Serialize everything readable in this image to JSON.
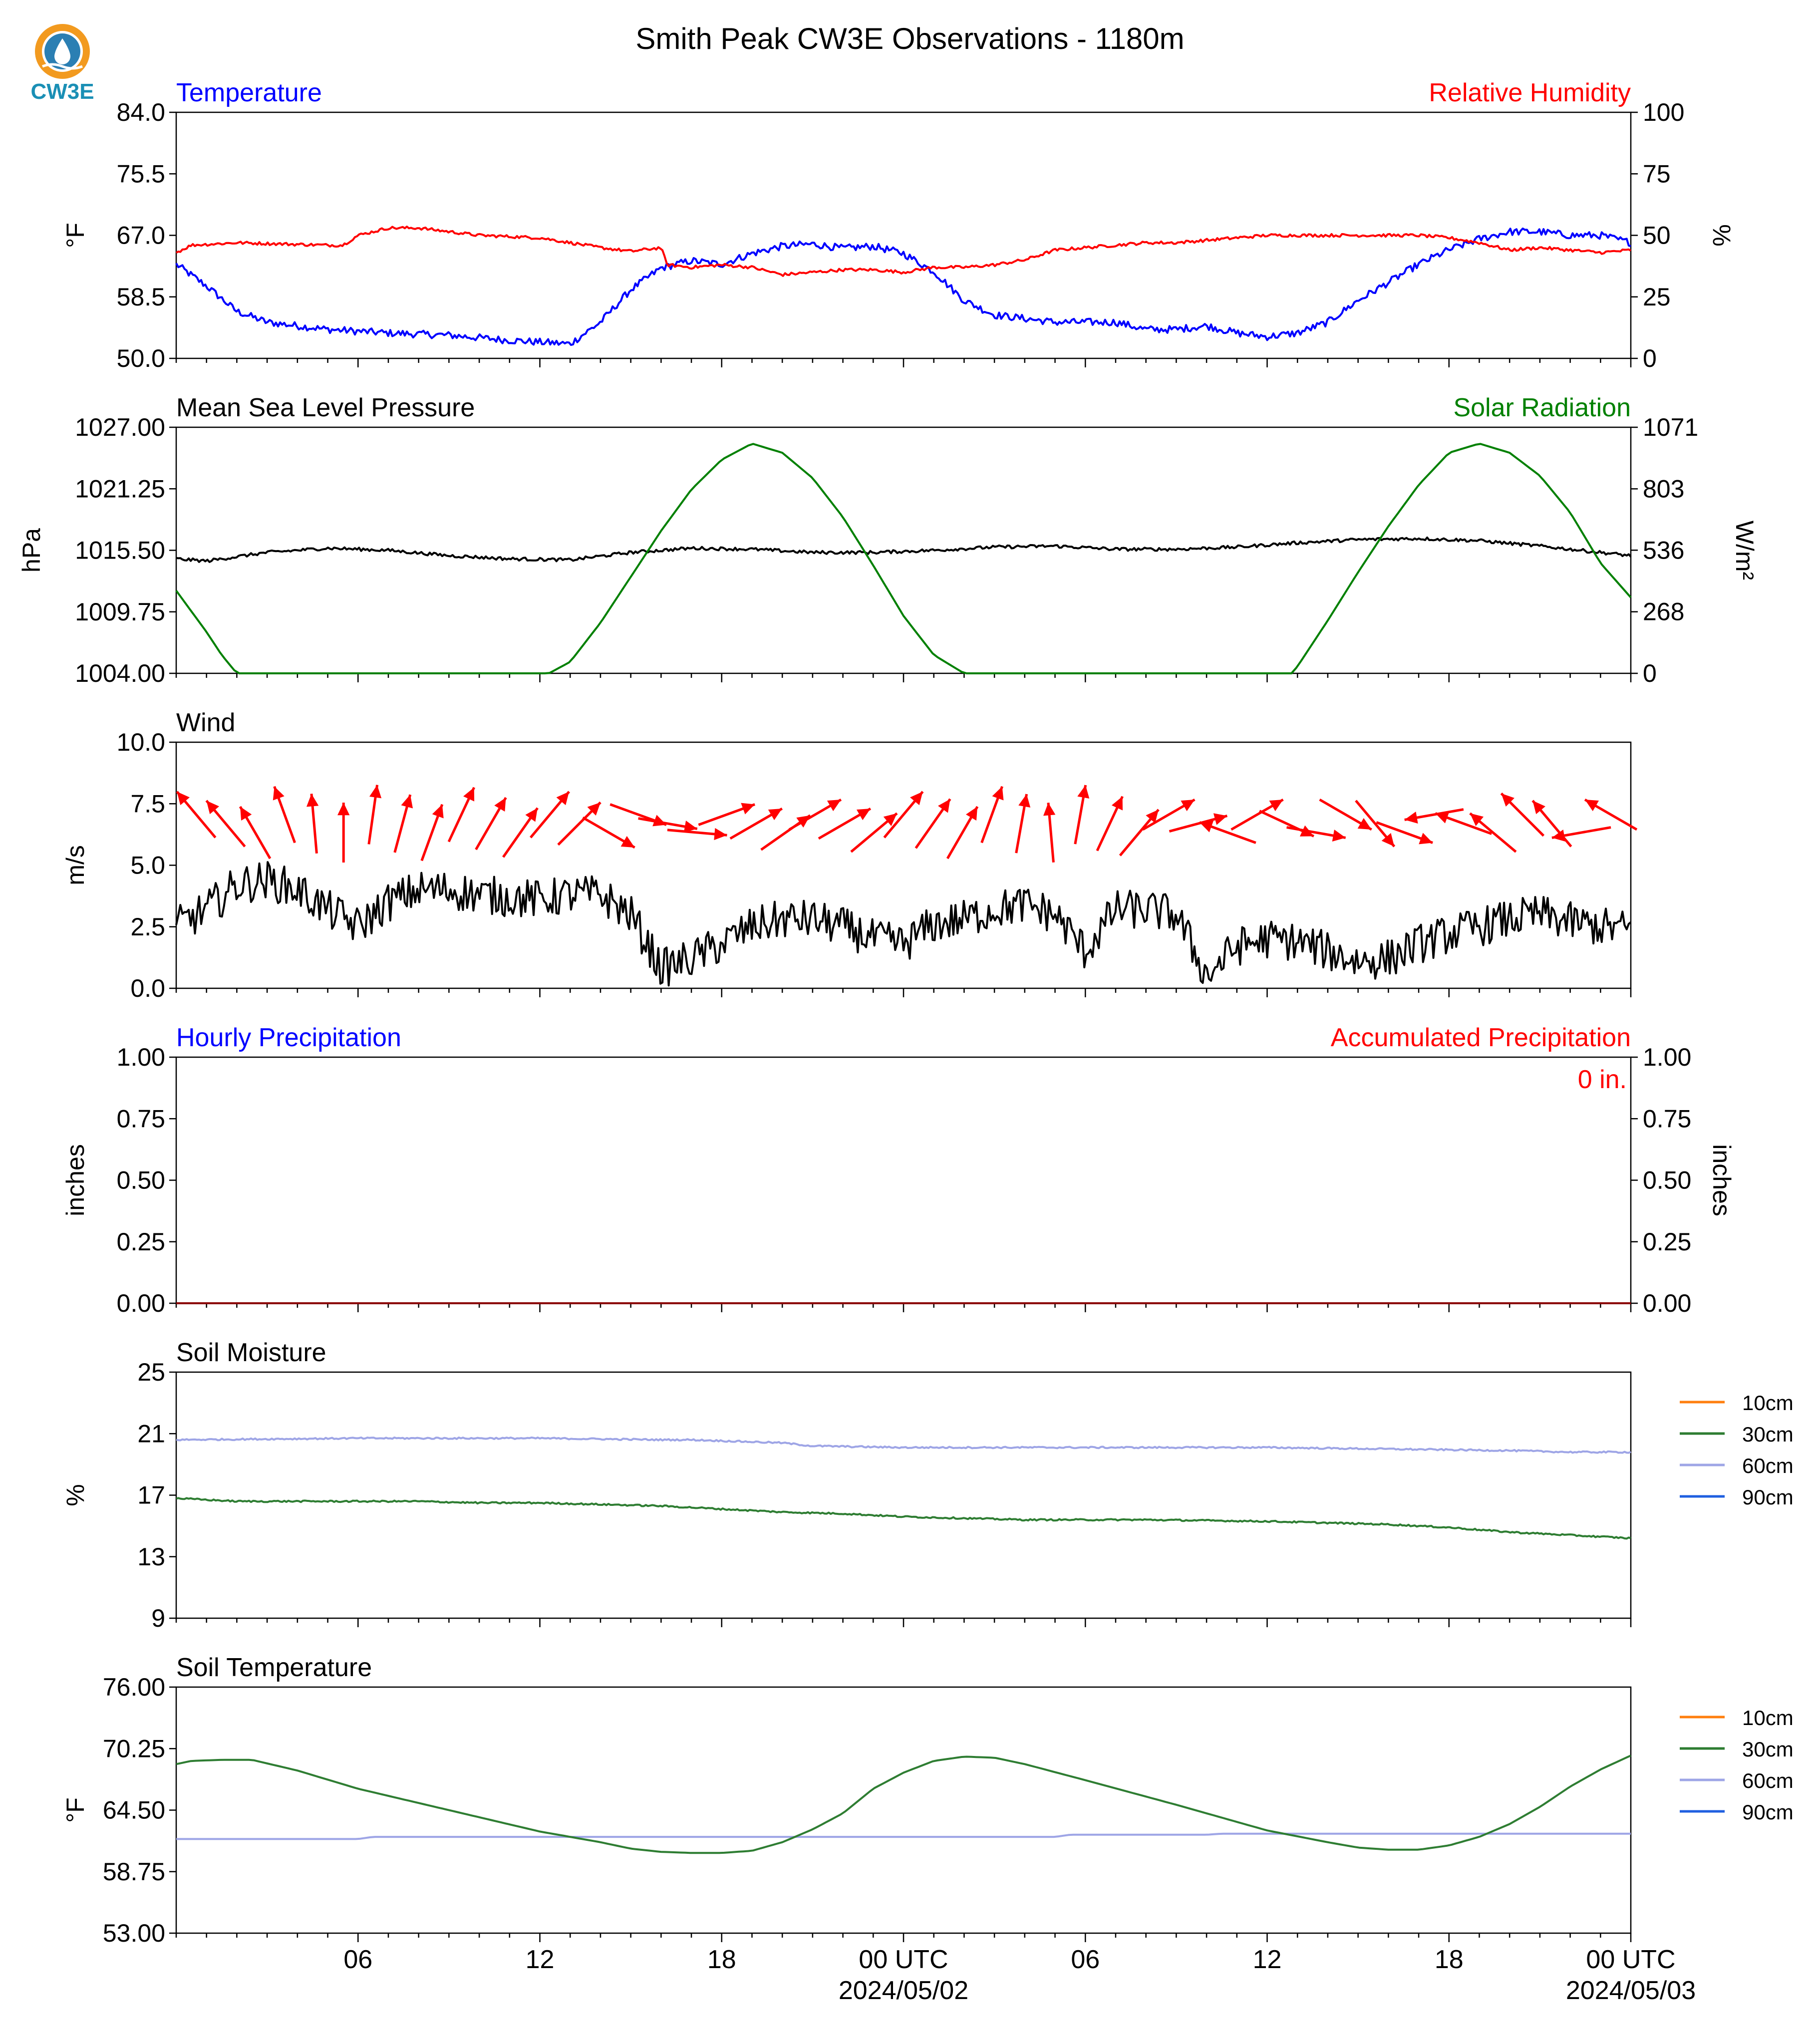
{
  "title": "Smith Peak CW3E Observations - 1180m",
  "logo": {
    "text": "CW3E",
    "colors": {
      "ring": "#f29a1f",
      "drop": "#2b7fb3",
      "text": "#1a8fb5"
    }
  },
  "x_axis": {
    "range_hours": [
      0,
      48
    ],
    "ticks": [
      {
        "hour": 6,
        "label": "06",
        "sub": ""
      },
      {
        "hour": 12,
        "label": "12",
        "sub": ""
      },
      {
        "hour": 18,
        "label": "18",
        "sub": ""
      },
      {
        "hour": 24,
        "label": "00 UTC",
        "sub": "2024/05/02"
      },
      {
        "hour": 30,
        "label": "06",
        "sub": ""
      },
      {
        "hour": 36,
        "label": "12",
        "sub": ""
      },
      {
        "hour": 42,
        "label": "18",
        "sub": ""
      },
      {
        "hour": 48,
        "label": "00 UTC",
        "sub": "2024/05/03"
      }
    ]
  },
  "chart_data": [
    {
      "id": "temp",
      "type": "line",
      "left_title": "Temperature",
      "left_title_color": "#0000ff",
      "right_title": "Relative Humidity",
      "right_title_color": "#ff0000",
      "ylabel": "°F",
      "ylabel2": "%",
      "ylim": [
        50.0,
        84.0
      ],
      "yticks": [
        "50.0",
        "58.5",
        "67.0",
        "75.5",
        "84.0"
      ],
      "ylim2": [
        0,
        100
      ],
      "yticks2": [
        "0",
        "25",
        "50",
        "75",
        "100"
      ],
      "series": [
        {
          "axis": "left",
          "color": "#0000ff",
          "noise": 0.5,
          "x": [
            0,
            1,
            2,
            3,
            5,
            7,
            9,
            11,
            13,
            14,
            15,
            16,
            17,
            18,
            19,
            20,
            21,
            22,
            23,
            24,
            25,
            26,
            27,
            28,
            29,
            30,
            31,
            32,
            33,
            34,
            35,
            36,
            37,
            38,
            39,
            40,
            41,
            42,
            43,
            44,
            45,
            46,
            47,
            48
          ],
          "y": [
            63,
            60,
            56.5,
            55,
            54,
            53.5,
            53.2,
            52.5,
            52,
            55,
            59.5,
            62.5,
            63.5,
            63,
            64.5,
            65.5,
            65.8,
            65.2,
            65.5,
            64.5,
            62,
            58,
            56,
            55.5,
            55,
            55,
            55,
            54,
            54,
            54.5,
            53.5,
            53,
            53.5,
            55,
            58,
            60.5,
            63,
            65,
            66.5,
            67.5,
            67.5,
            67,
            67,
            66
          ]
        },
        {
          "axis": "right",
          "color": "#ff0000",
          "noise": 0.6,
          "x": [
            0,
            0.5,
            2,
            5,
            5.5,
            6,
            7,
            8,
            10,
            12,
            14,
            15,
            16,
            16.2,
            17,
            18,
            19,
            20,
            21,
            22,
            23,
            24,
            25,
            26,
            27,
            28,
            29,
            30,
            31,
            32,
            33,
            34,
            35,
            36,
            37,
            38,
            39,
            40,
            41,
            42,
            43,
            44,
            45,
            46,
            47,
            48
          ],
          "y": [
            43,
            46,
            47,
            46,
            46,
            50,
            53,
            53,
            50,
            49,
            45,
            43.5,
            45,
            38,
            37,
            38,
            37,
            34,
            35,
            36,
            36,
            35,
            37,
            37,
            38,
            40,
            44,
            45,
            46,
            47,
            47,
            48,
            49,
            50,
            50,
            50,
            50,
            50,
            50,
            49,
            47,
            44,
            45,
            44,
            43,
            44
          ]
        }
      ]
    },
    {
      "id": "pressure",
      "type": "line",
      "left_title": "Mean Sea Level Pressure",
      "left_title_color": "#000000",
      "right_title": "Solar Radiation",
      "right_title_color": "#008000",
      "ylabel": "hPa",
      "ylabel2": "W/m²",
      "ylim": [
        1004.0,
        1027.0
      ],
      "yticks": [
        "1004.00",
        "1009.75",
        "1015.50",
        "1021.25",
        "1027.00"
      ],
      "ylim2": [
        0,
        1071
      ],
      "yticks2": [
        "0",
        "268",
        "536",
        "803",
        "1071"
      ],
      "series": [
        {
          "axis": "left",
          "color": "#000000",
          "noise": 0.15,
          "x": [
            0,
            1,
            3,
            5,
            7,
            9,
            11,
            13,
            15,
            17,
            19,
            21,
            23,
            25,
            27,
            29,
            31,
            33,
            35,
            37,
            39,
            41,
            43,
            45,
            48
          ],
          "y": [
            1014.7,
            1014.5,
            1015.3,
            1015.7,
            1015.5,
            1015.0,
            1014.7,
            1014.6,
            1015.3,
            1015.7,
            1015.6,
            1015.3,
            1015.3,
            1015.5,
            1015.8,
            1015.9,
            1015.6,
            1015.6,
            1015.8,
            1016.2,
            1016.5,
            1016.6,
            1016.4,
            1015.9,
            1015.0
          ]
        },
        {
          "axis": "right",
          "color": "#008000",
          "noise": 0,
          "x": [
            0,
            0.5,
            1,
            1.5,
            2,
            5,
            8,
            11,
            12,
            12.3,
            13,
            14,
            15,
            16,
            17,
            18,
            19,
            20,
            21,
            22,
            23,
            24,
            25,
            26,
            27,
            28,
            30,
            34,
            36,
            36.8,
            37,
            38,
            39,
            40,
            41,
            42,
            43,
            44,
            45,
            46,
            47,
            48
          ],
          "y": [
            360,
            270,
            180,
            80,
            0,
            0,
            0,
            0,
            0,
            0,
            50,
            220,
            420,
            620,
            800,
            930,
            1000,
            960,
            850,
            680,
            470,
            250,
            80,
            0,
            0,
            0,
            0,
            0,
            0,
            0,
            30,
            230,
            440,
            640,
            820,
            960,
            1000,
            960,
            860,
            700,
            480,
            330
          ]
        }
      ]
    },
    {
      "id": "wind",
      "type": "line",
      "left_title": "Wind",
      "left_title_color": "#000000",
      "ylabel": "m/s",
      "ylim": [
        0.0,
        10.0
      ],
      "yticks": [
        "0.0",
        "2.5",
        "5.0",
        "7.5",
        "10.0"
      ],
      "series": [
        {
          "axis": "left",
          "color": "#000000",
          "noise": 0.8,
          "x": [
            0,
            1,
            2,
            3,
            4,
            5,
            6,
            7,
            8,
            9,
            10,
            11,
            12,
            13,
            14,
            15,
            16,
            17,
            18,
            19,
            20,
            21,
            22,
            23,
            24,
            25,
            26,
            27,
            28,
            29,
            30,
            31,
            32,
            33,
            34,
            35,
            36,
            37,
            38,
            39,
            40,
            41,
            42,
            43,
            44,
            45,
            46,
            47,
            48
          ],
          "y": [
            2.5,
            3.2,
            4.2,
            4.4,
            4.0,
            3.2,
            2.5,
            3.5,
            4.0,
            4.0,
            3.8,
            3.7,
            3.6,
            3.8,
            3.8,
            3.0,
            0.8,
            1.2,
            1.8,
            2.5,
            2.8,
            2.8,
            2.5,
            2.0,
            1.8,
            2.6,
            2.8,
            3.2,
            3.4,
            3.0,
            1.5,
            3.2,
            3.2,
            3.0,
            0.5,
            1.7,
            2.0,
            1.9,
            1.5,
            1.1,
            1.2,
            1.8,
            2.2,
            2.5,
            2.8,
            3.0,
            2.7,
            2.5,
            2.4
          ]
        }
      ],
      "wind_barbs": {
        "color": "#ff0000",
        "hours": [
          0,
          1,
          2,
          3,
          4,
          5,
          6,
          7,
          8,
          9,
          10,
          11,
          12,
          13,
          14,
          15,
          16,
          17,
          18,
          19,
          20,
          21,
          22,
          23,
          24,
          25,
          26,
          27,
          28,
          29,
          30,
          31,
          32,
          33,
          34,
          35,
          36,
          37,
          38,
          39,
          40,
          41,
          42,
          43,
          44,
          45,
          46,
          47,
          48
        ],
        "directions_deg": [
          320,
          320,
          330,
          340,
          355,
          0,
          8,
          15,
          20,
          25,
          30,
          35,
          40,
          45,
          120,
          110,
          100,
          95,
          70,
          60,
          55,
          60,
          60,
          50,
          40,
          35,
          30,
          20,
          10,
          355,
          10,
          25,
          40,
          60,
          75,
          290,
          60,
          115,
          100,
          120,
          140,
          110,
          260,
          290,
          310,
          315,
          320,
          260,
          300
        ]
      }
    },
    {
      "id": "precip",
      "type": "line",
      "left_title": "Hourly Precipitation",
      "left_title_color": "#0000ff",
      "right_title": "Accumulated Precipitation",
      "right_title_color": "#ff0000",
      "annotation": "0 in.",
      "annotation_color": "#ff0000",
      "ylabel": "inches",
      "ylabel2": "inches",
      "ylim": [
        0.0,
        1.0
      ],
      "yticks": [
        "0.00",
        "0.25",
        "0.50",
        "0.75",
        "1.00"
      ],
      "ylim2": [
        0.0,
        1.0
      ],
      "yticks2": [
        "0.00",
        "0.25",
        "0.50",
        "0.75",
        "1.00"
      ],
      "series": [
        {
          "axis": "right",
          "color": "#8b0000",
          "noise": 0,
          "x": [
            0,
            48
          ],
          "y": [
            0,
            0
          ]
        }
      ]
    },
    {
      "id": "soil_moisture",
      "type": "line",
      "left_title": "Soil Moisture",
      "left_title_color": "#000000",
      "ylabel": "%",
      "ylim": [
        9,
        25
      ],
      "yticks": [
        "9",
        "13",
        "17",
        "21",
        "25"
      ],
      "legend": [
        {
          "label": "10cm",
          "color": "#ff7f0e"
        },
        {
          "label": "30cm",
          "color": "#2e7d32"
        },
        {
          "label": "60cm",
          "color": "#9ea5e6"
        },
        {
          "label": "90cm",
          "color": "#1f5fe0"
        }
      ],
      "series": [
        {
          "axis": "left",
          "color": "#9ea5e6",
          "noise": 0.05,
          "x": [
            0,
            6,
            12,
            16,
            17,
            20,
            21,
            24,
            28,
            32,
            36,
            40,
            44,
            46,
            48
          ],
          "y": [
            20.6,
            20.7,
            20.7,
            20.6,
            20.6,
            20.4,
            20.2,
            20.1,
            20.1,
            20.1,
            20.1,
            20.0,
            19.9,
            19.8,
            19.8
          ]
        },
        {
          "axis": "left",
          "color": "#2e7d32",
          "noise": 0.05,
          "x": [
            0,
            2,
            4,
            8,
            10,
            12,
            14,
            16,
            18,
            20,
            22,
            24,
            28,
            32,
            36,
            40,
            42,
            44,
            46,
            48
          ],
          "y": [
            16.8,
            16.6,
            16.6,
            16.6,
            16.5,
            16.5,
            16.4,
            16.3,
            16.1,
            15.9,
            15.8,
            15.6,
            15.4,
            15.4,
            15.3,
            15.1,
            14.9,
            14.6,
            14.4,
            14.2
          ]
        }
      ]
    },
    {
      "id": "soil_temp",
      "type": "line",
      "left_title": "Soil Temperature",
      "left_title_color": "#000000",
      "ylabel": "°F",
      "ylim": [
        53.0,
        76.0
      ],
      "yticks": [
        "53.00",
        "58.75",
        "64.50",
        "70.25",
        "76.00"
      ],
      "legend": [
        {
          "label": "10cm",
          "color": "#ff7f0e"
        },
        {
          "label": "30cm",
          "color": "#2e7d32"
        },
        {
          "label": "60cm",
          "color": "#9ea5e6"
        },
        {
          "label": "90cm",
          "color": "#1f5fe0"
        }
      ],
      "series": [
        {
          "axis": "left",
          "color": "#9ea5e6",
          "noise": 0,
          "x": [
            0,
            6,
            6.5,
            12,
            18,
            24,
            29,
            29.5,
            34,
            34.5,
            40,
            48
          ],
          "y": [
            61.8,
            61.8,
            62.0,
            62.0,
            62.0,
            62.0,
            62.0,
            62.2,
            62.2,
            62.3,
            62.3,
            62.3
          ]
        },
        {
          "axis": "left",
          "color": "#2e7d32",
          "noise": 0,
          "x": [
            0,
            0.5,
            1.5,
            2.5,
            4,
            6,
            9,
            12,
            14,
            15,
            16,
            17,
            18,
            19,
            20,
            21,
            22,
            23,
            24,
            25,
            26,
            27,
            28,
            30,
            33,
            36,
            38,
            39,
            40,
            41,
            42,
            43,
            44,
            45,
            46,
            47,
            48
          ],
          "y": [
            68.8,
            69.1,
            69.2,
            69.2,
            68.2,
            66.5,
            64.5,
            62.5,
            61.5,
            60.9,
            60.6,
            60.5,
            60.5,
            60.7,
            61.5,
            62.7,
            64.2,
            66.5,
            68.0,
            69.1,
            69.5,
            69.4,
            68.8,
            67.3,
            65.0,
            62.6,
            61.5,
            61.0,
            60.8,
            60.8,
            61.2,
            62.0,
            63.2,
            64.8,
            66.7,
            68.3,
            69.6
          ]
        }
      ]
    }
  ]
}
